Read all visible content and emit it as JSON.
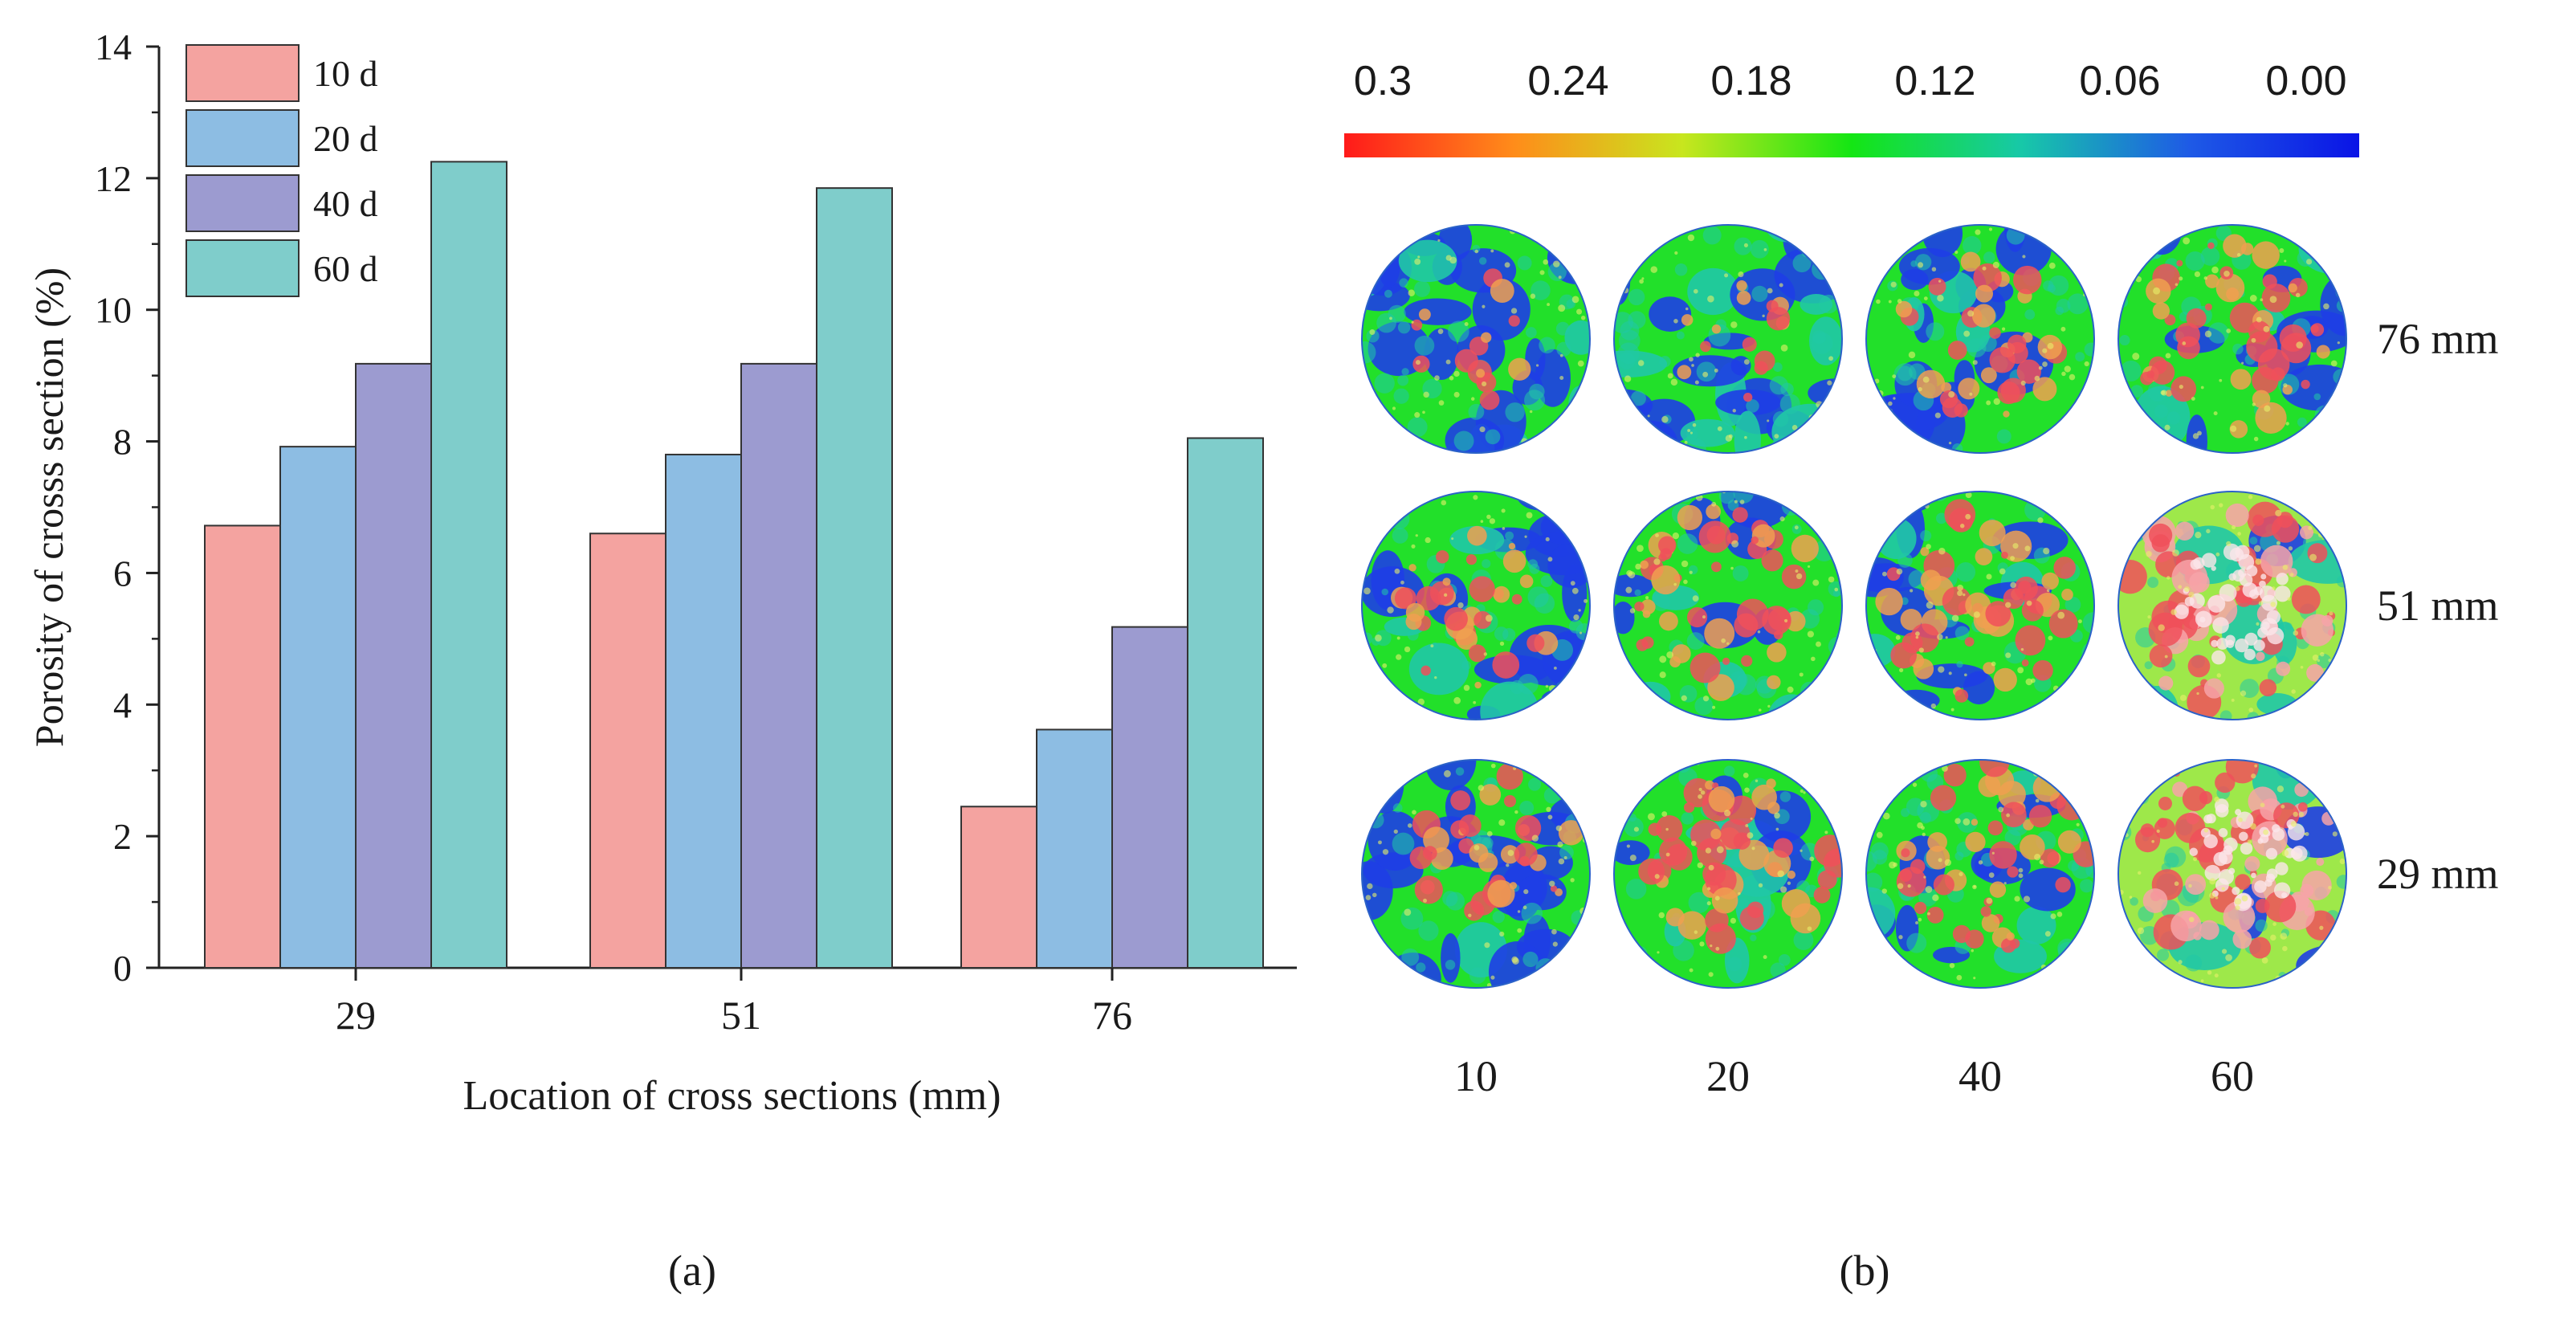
{
  "chart_data": [
    {
      "type": "bar",
      "panel_label": "(a)",
      "categories": [
        "29",
        "51",
        "76"
      ],
      "xlabel": "Location of cross sections (mm)",
      "ylabel": "Porosity of crosss section (%)",
      "ylim": [
        0,
        14
      ],
      "yticks": [
        0,
        2,
        4,
        6,
        8,
        10,
        12,
        14
      ],
      "grid": false,
      "legend_placement": "top-left",
      "series": [
        {
          "name": "10 d",
          "color": "#f4a3a0",
          "values": [
            6.72,
            6.6,
            2.45
          ]
        },
        {
          "name": "20 d",
          "color": "#8dbde3",
          "values": [
            7.92,
            7.8,
            3.62
          ]
        },
        {
          "name": "40 d",
          "color": "#9c9bd0",
          "values": [
            9.18,
            9.18,
            5.18
          ]
        },
        {
          "name": "60 d",
          "color": "#7fcdcb",
          "values": [
            12.25,
            11.85,
            8.05
          ]
        }
      ]
    },
    {
      "type": "heatmap",
      "panel_label": "(b)",
      "colorbar_ticks": [
        "0.3",
        "0.24",
        "0.18",
        "0.12",
        "0.06",
        "0.00"
      ],
      "colorbar_colors": [
        "#ff1a1a",
        "#ff8c1a",
        "#c8e61e",
        "#14e614",
        "#17c8a8",
        "#1e5ae6",
        "#0a14e6"
      ],
      "columns": [
        "10",
        "20",
        "40",
        "60"
      ],
      "rows": [
        "76 mm",
        "51 mm",
        "29 mm"
      ],
      "cell_intensity_description": [
        [
          "low",
          "low",
          "medium",
          "high"
        ],
        [
          "medium",
          "high",
          "high",
          "very-high"
        ],
        [
          "medium",
          "high",
          "high",
          "very-high"
        ]
      ]
    }
  ]
}
